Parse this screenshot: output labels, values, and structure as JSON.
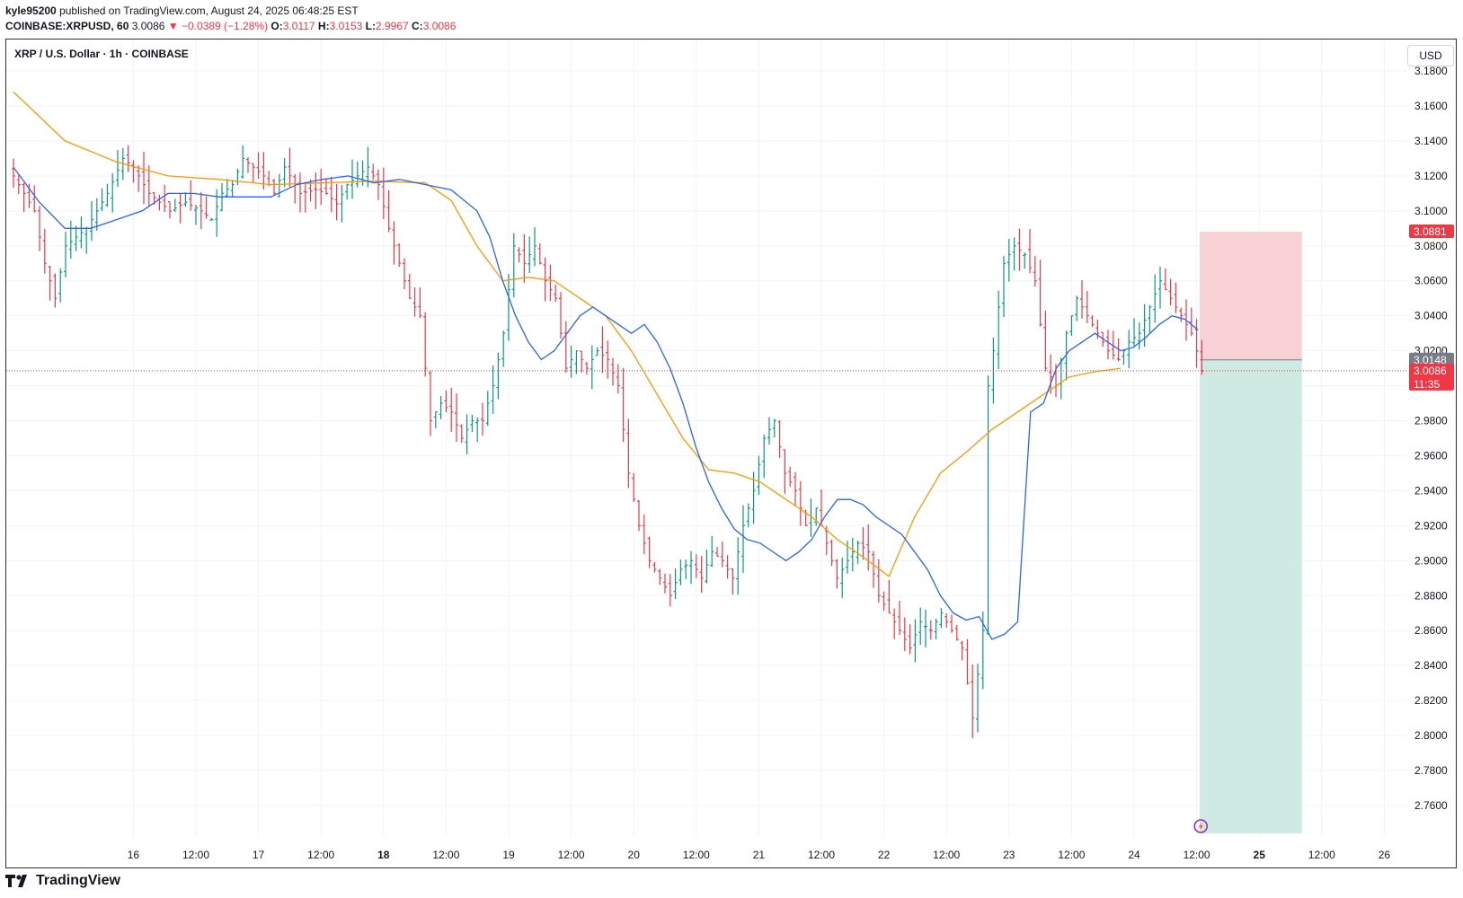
{
  "header": {
    "publisher": "kyle95200",
    "published_text": "published on TradingView.com, August 24, 2025 06:48:25 EST",
    "ticker_line": "COINBASE:XRPUSD, 60",
    "last": "3.0086",
    "change": "−0.0389 (−1.28%)",
    "open_label": "O:",
    "open": "3.0117",
    "high_label": "H:",
    "high": "3.0153",
    "low_label": "L:",
    "low": "2.9967",
    "close_label": "C:",
    "close": "3.0086"
  },
  "symbol_title": "XRP / U.S. Dollar · 1h · COINBASE",
  "currency_button": "USD",
  "footer_logo": "TradingView",
  "colors": {
    "up": "#089981",
    "down": "#f23645",
    "ema_fast": "#2962ff",
    "ema_slow": "#ff9800",
    "stop_zone": "#f7d1d4",
    "target_zone": "#cfe9e3"
  },
  "chart_data": {
    "type": "candlestick",
    "interval": "1h",
    "ylim": [
      2.742,
      3.198
    ],
    "y_ticks": [
      "3.1800",
      "3.1600",
      "3.1400",
      "3.1200",
      "3.1000",
      "3.0800",
      "3.0600",
      "3.0400",
      "3.0200",
      "3.0000",
      "2.9800",
      "2.9600",
      "2.9400",
      "2.9200",
      "2.9000",
      "2.8800",
      "2.8600",
      "2.8400",
      "2.8200",
      "2.8000",
      "2.7800",
      "2.7600"
    ],
    "x_ticks": [
      {
        "label": "16",
        "t": 23,
        "bold": false
      },
      {
        "label": "12:00",
        "t": 35,
        "bold": false
      },
      {
        "label": "17",
        "t": 47,
        "bold": false
      },
      {
        "label": "12:00",
        "t": 59,
        "bold": false
      },
      {
        "label": "18",
        "t": 71,
        "bold": true
      },
      {
        "label": "12:00",
        "t": 83,
        "bold": false
      },
      {
        "label": "19",
        "t": 95,
        "bold": false
      },
      {
        "label": "12:00",
        "t": 107,
        "bold": false
      },
      {
        "label": "20",
        "t": 119,
        "bold": false
      },
      {
        "label": "12:00",
        "t": 131,
        "bold": false
      },
      {
        "label": "21",
        "t": 143,
        "bold": false
      },
      {
        "label": "12:00",
        "t": 155,
        "bold": false
      },
      {
        "label": "22",
        "t": 167,
        "bold": false
      },
      {
        "label": "12:00",
        "t": 179,
        "bold": false
      },
      {
        "label": "23",
        "t": 191,
        "bold": false
      },
      {
        "label": "12:00",
        "t": 203,
        "bold": false
      },
      {
        "label": "24",
        "t": 215,
        "bold": false
      },
      {
        "label": "12:00",
        "t": 227,
        "bold": false
      },
      {
        "label": "25",
        "t": 239,
        "bold": true
      },
      {
        "label": "12:00",
        "t": 251,
        "bold": false
      },
      {
        "label": "26",
        "t": 263,
        "bold": false
      }
    ],
    "close_path": [
      [
        0,
        3.12
      ],
      [
        4,
        3.1
      ],
      [
        6,
        3.07
      ],
      [
        8,
        3.05
      ],
      [
        10,
        3.08
      ],
      [
        14,
        3.09
      ],
      [
        18,
        3.11
      ],
      [
        21,
        3.13
      ],
      [
        23,
        3.125
      ],
      [
        26,
        3.11
      ],
      [
        30,
        3.1
      ],
      [
        33,
        3.105
      ],
      [
        36,
        3.1
      ],
      [
        38,
        3.095
      ],
      [
        40,
        3.11
      ],
      [
        42,
        3.115
      ],
      [
        44,
        3.13
      ],
      [
        46,
        3.125
      ],
      [
        48,
        3.12
      ],
      [
        50,
        3.11
      ],
      [
        52,
        3.125
      ],
      [
        55,
        3.11
      ],
      [
        58,
        3.112
      ],
      [
        60,
        3.11
      ],
      [
        62,
        3.104
      ],
      [
        64,
        3.115
      ],
      [
        66,
        3.12
      ],
      [
        68,
        3.125
      ],
      [
        70,
        3.115
      ],
      [
        72,
        3.09
      ],
      [
        74,
        3.07
      ],
      [
        76,
        3.05
      ],
      [
        78,
        3.04
      ],
      [
        80,
        2.98
      ],
      [
        82,
        2.99
      ],
      [
        84,
        2.985
      ],
      [
        86,
        2.97
      ],
      [
        88,
        2.98
      ],
      [
        90,
        2.98
      ],
      [
        92,
        3.0
      ],
      [
        94,
        3.03
      ],
      [
        96,
        3.08
      ],
      [
        98,
        3.07
      ],
      [
        100,
        3.08
      ],
      [
        102,
        3.06
      ],
      [
        104,
        3.05
      ],
      [
        106,
        3.01
      ],
      [
        108,
        3.02
      ],
      [
        110,
        3.01
      ],
      [
        112,
        3.02
      ],
      [
        114,
        3.015
      ],
      [
        116,
        3.0
      ],
      [
        118,
        2.95
      ],
      [
        120,
        2.92
      ],
      [
        122,
        2.9
      ],
      [
        124,
        2.89
      ],
      [
        126,
        2.88
      ],
      [
        128,
        2.895
      ],
      [
        130,
        2.9
      ],
      [
        132,
        2.89
      ],
      [
        134,
        2.905
      ],
      [
        136,
        2.9
      ],
      [
        138,
        2.89
      ],
      [
        140,
        2.92
      ],
      [
        142,
        2.94
      ],
      [
        144,
        2.97
      ],
      [
        146,
        2.98
      ],
      [
        148,
        2.95
      ],
      [
        150,
        2.94
      ],
      [
        152,
        2.92
      ],
      [
        154,
        2.93
      ],
      [
        156,
        2.91
      ],
      [
        158,
        2.89
      ],
      [
        160,
        2.9
      ],
      [
        162,
        2.91
      ],
      [
        164,
        2.905
      ],
      [
        166,
        2.88
      ],
      [
        168,
        2.87
      ],
      [
        170,
        2.86
      ],
      [
        172,
        2.85
      ],
      [
        174,
        2.865
      ],
      [
        176,
        2.86
      ],
      [
        178,
        2.87
      ],
      [
        180,
        2.86
      ],
      [
        182,
        2.85
      ],
      [
        184,
        2.81
      ],
      [
        186,
        2.86
      ],
      [
        187,
        3.0
      ],
      [
        188,
        3.02
      ],
      [
        190,
        3.07
      ],
      [
        192,
        3.08
      ],
      [
        194,
        3.075
      ],
      [
        196,
        3.06
      ],
      [
        198,
        3.01
      ],
      [
        200,
        3.0
      ],
      [
        202,
        3.03
      ],
      [
        204,
        3.05
      ],
      [
        206,
        3.04
      ],
      [
        208,
        3.03
      ],
      [
        210,
        3.02
      ],
      [
        212,
        3.015
      ],
      [
        214,
        3.025
      ],
      [
        216,
        3.03
      ],
      [
        218,
        3.045
      ],
      [
        220,
        3.06
      ],
      [
        222,
        3.05
      ],
      [
        224,
        3.04
      ],
      [
        226,
        3.03
      ],
      [
        227.5,
        3.0148
      ],
      [
        228,
        3.0086
      ]
    ],
    "ema_fast": [
      [
        0,
        3.125
      ],
      [
        4,
        3.105
      ],
      [
        8,
        3.09
      ],
      [
        12,
        3.09
      ],
      [
        16,
        3.095
      ],
      [
        20,
        3.1
      ],
      [
        24,
        3.11
      ],
      [
        28,
        3.11
      ],
      [
        32,
        3.108
      ],
      [
        36,
        3.108
      ],
      [
        40,
        3.108
      ],
      [
        44,
        3.115
      ],
      [
        48,
        3.118
      ],
      [
        52,
        3.12
      ],
      [
        56,
        3.116
      ],
      [
        60,
        3.118
      ],
      [
        64,
        3.115
      ],
      [
        68,
        3.112
      ],
      [
        72,
        3.1
      ],
      [
        74,
        3.085
      ],
      [
        76,
        3.06
      ],
      [
        78,
        3.04
      ],
      [
        80,
        3.025
      ],
      [
        82,
        3.015
      ],
      [
        84,
        3.02
      ],
      [
        86,
        3.03
      ],
      [
        88,
        3.04
      ],
      [
        90,
        3.045
      ],
      [
        92,
        3.04
      ],
      [
        94,
        3.035
      ],
      [
        96,
        3.03
      ],
      [
        98,
        3.035
      ],
      [
        100,
        3.025
      ],
      [
        102,
        3.01
      ],
      [
        104,
        2.99
      ],
      [
        106,
        2.965
      ],
      [
        108,
        2.945
      ],
      [
        110,
        2.93
      ],
      [
        112,
        2.918
      ],
      [
        114,
        2.912
      ],
      [
        116,
        2.91
      ],
      [
        118,
        2.905
      ],
      [
        120,
        2.9
      ],
      [
        122,
        2.905
      ],
      [
        124,
        2.912
      ],
      [
        126,
        2.925
      ],
      [
        128,
        2.935
      ],
      [
        130,
        2.935
      ],
      [
        132,
        2.932
      ],
      [
        134,
        2.925
      ],
      [
        136,
        2.92
      ],
      [
        138,
        2.915
      ],
      [
        140,
        2.905
      ],
      [
        142,
        2.895
      ],
      [
        144,
        2.88
      ],
      [
        146,
        2.87
      ],
      [
        148,
        2.866
      ],
      [
        150,
        2.868
      ],
      [
        152,
        2.855
      ],
      [
        154,
        2.858
      ],
      [
        156,
        2.865
      ],
      [
        158,
        2.985
      ],
      [
        160,
        2.99
      ],
      [
        162,
        3.01
      ],
      [
        164,
        3.02
      ],
      [
        166,
        3.025
      ],
      [
        168,
        3.03
      ],
      [
        170,
        3.025
      ],
      [
        172,
        3.02
      ],
      [
        174,
        3.022
      ],
      [
        176,
        3.028
      ],
      [
        178,
        3.035
      ],
      [
        180,
        3.04
      ],
      [
        182,
        3.038
      ],
      [
        184,
        3.032
      ]
    ],
    "ema_slow": [
      [
        0,
        3.168
      ],
      [
        8,
        3.14
      ],
      [
        16,
        3.128
      ],
      [
        24,
        3.12
      ],
      [
        32,
        3.118
      ],
      [
        40,
        3.115
      ],
      [
        48,
        3.116
      ],
      [
        56,
        3.117
      ],
      [
        64,
        3.116
      ],
      [
        68,
        3.106
      ],
      [
        72,
        3.08
      ],
      [
        76,
        3.06
      ],
      [
        80,
        3.062
      ],
      [
        84,
        3.06
      ],
      [
        88,
        3.05
      ],
      [
        92,
        3.04
      ],
      [
        96,
        3.02
      ],
      [
        100,
        2.995
      ],
      [
        104,
        2.97
      ],
      [
        108,
        2.952
      ],
      [
        112,
        2.95
      ],
      [
        116,
        2.945
      ],
      [
        120,
        2.935
      ],
      [
        124,
        2.925
      ],
      [
        128,
        2.912
      ],
      [
        132,
        2.902
      ],
      [
        136,
        2.891
      ],
      [
        140,
        2.925
      ],
      [
        144,
        2.95
      ],
      [
        148,
        2.962
      ],
      [
        152,
        2.975
      ],
      [
        156,
        2.985
      ],
      [
        160,
        2.995
      ],
      [
        164,
        3.005
      ],
      [
        168,
        3.008
      ],
      [
        172,
        3.01
      ]
    ],
    "position_tool": {
      "entry": 3.0148,
      "stop": 3.0881,
      "target": 2.744,
      "t_start": 227.6,
      "t_end": 247.2
    },
    "labels": {
      "stop_price": "3.0881",
      "entry_price": "3.0148",
      "last_price": "3.0086",
      "countdown": "11:35"
    }
  }
}
